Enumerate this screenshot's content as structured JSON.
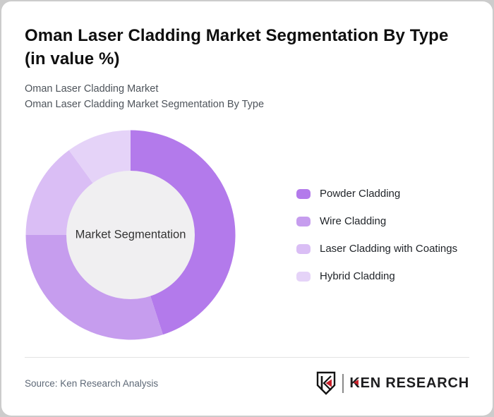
{
  "header": {
    "title": "Oman Laser Cladding Market Segmentation By Type (in value %)",
    "subtitle_lines": [
      "Oman Laser Cladding Market",
      "Oman Laser Cladding Market Segmentation By Type"
    ]
  },
  "chart_data": {
    "type": "pie",
    "variant": "donut",
    "title": "Oman Laser Cladding Market Segmentation By Type (in value %)",
    "categories": [
      "Powder Cladding",
      "Wire Cladding",
      "Laser Cladding with Coatings",
      "Hybrid Cladding"
    ],
    "values": [
      45,
      30,
      15,
      10
    ],
    "unit": "%",
    "colors": [
      "#b37aeb",
      "#c69dee",
      "#dabef5",
      "#e5d3f8"
    ],
    "center_label": "Market Segmentation",
    "inner_circle_color": "#f0eff1",
    "legend_position": "right",
    "start_angle_deg": 0,
    "direction": "clockwise"
  },
  "footer": {
    "source": "Source: Ken Research Analysis",
    "logo": {
      "text": "KEN RESEARCH",
      "accent_color": "#c8202a",
      "shield_icon": "ken-research-shield"
    }
  }
}
